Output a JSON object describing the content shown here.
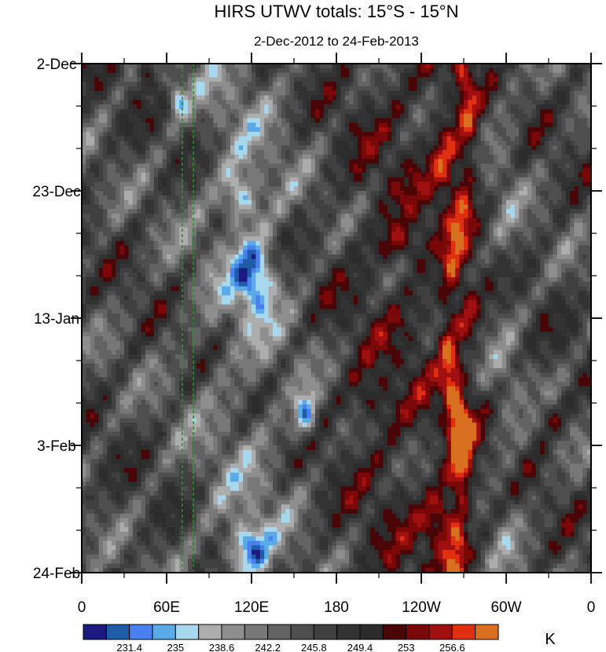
{
  "chart_data": {
    "type": "heatmap",
    "title": "HIRS UTWV totals: 15°S - 15°N",
    "subtitle": "2-Dec-2012 to 24-Feb-2013",
    "y_ticks": [
      "2-Dec",
      "23-Dec",
      "13-Jan",
      "3-Feb",
      "24-Feb"
    ],
    "x_ticks": [
      "0",
      "60E",
      "120E",
      "180",
      "120W",
      "60W",
      "0"
    ],
    "x_range_deg_east": [
      0,
      360
    ],
    "y_range_days": [
      0,
      84
    ],
    "colorbar": {
      "unit": "K",
      "colors": [
        "#1a1a80",
        "#1f5ca8",
        "#4a7ff2",
        "#5aaae8",
        "#a8d8ee",
        "#adadad",
        "#8e8e8e",
        "#787878",
        "#636363",
        "#4e4e4e",
        "#404040",
        "#333333",
        "#2c2c2c",
        "#4a0606",
        "#7a0808",
        "#a01010",
        "#e03010",
        "#d87020"
      ],
      "labels": [
        "231.4",
        "235",
        "238.6",
        "242.2",
        "245.8",
        "249.4",
        "253",
        "256.6"
      ]
    },
    "reference_lines_deg_east": [
      71,
      79
    ],
    "features": {
      "warm_bands_deg_east": [
        [
          262,
          275
        ],
        [
          240,
          272
        ]
      ],
      "cold_blobs": [
        {
          "lon": 122,
          "day": 35,
          "rx": 14,
          "ry": 6,
          "level": 2
        },
        {
          "lon": 112,
          "day": 22,
          "rx": 12,
          "ry": 4,
          "level": 3
        },
        {
          "lon": 158,
          "day": 58,
          "rx": 8,
          "ry": 4,
          "level": 2
        },
        {
          "lon": 118,
          "day": 80,
          "rx": 14,
          "ry": 4,
          "level": 2
        },
        {
          "lon": 68,
          "day": 6,
          "rx": 6,
          "ry": 3,
          "level": 4
        }
      ],
      "warm_blobs": [
        {
          "lon": 258,
          "day": 16,
          "rx": 10,
          "ry": 8,
          "level": 16
        },
        {
          "lon": 272,
          "day": 41,
          "rx": 8,
          "ry": 5,
          "level": 16
        },
        {
          "lon": 268,
          "day": 61,
          "rx": 10,
          "ry": 9,
          "level": 16
        },
        {
          "lon": 255,
          "day": 76,
          "rx": 12,
          "ry": 5,
          "level": 17
        },
        {
          "lon": 225,
          "day": 30,
          "rx": 16,
          "ry": 3,
          "level": 15
        },
        {
          "lon": 205,
          "day": 56,
          "rx": 18,
          "ry": 4,
          "level": 14
        },
        {
          "lon": 330,
          "day": 58,
          "rx": 12,
          "ry": 3,
          "level": 14
        },
        {
          "lon": 45,
          "day": 1,
          "rx": 6,
          "ry": 2,
          "level": 14
        }
      ]
    }
  }
}
